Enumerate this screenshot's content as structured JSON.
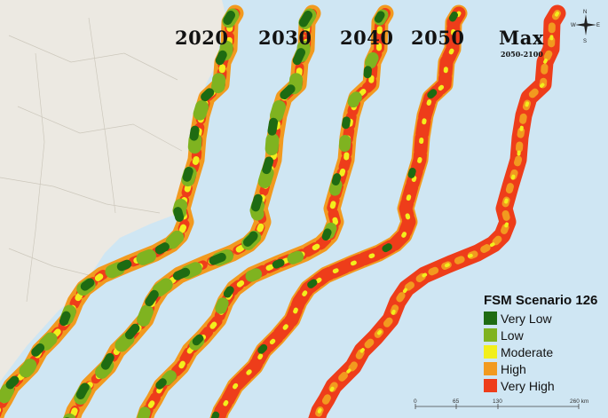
{
  "panels": [
    {
      "year": "2020",
      "sub": ""
    },
    {
      "year": "2030",
      "sub": ""
    },
    {
      "year": "2040",
      "sub": ""
    },
    {
      "year": "2050",
      "sub": ""
    },
    {
      "year": "Max",
      "sub": "2050-2100"
    }
  ],
  "legend": {
    "title": "FSM Scenario 126",
    "items": [
      {
        "label": "Very Low",
        "color": "#1e6b12"
      },
      {
        "label": "Low",
        "color": "#7fb320"
      },
      {
        "label": "Moderate",
        "color": "#f2ef1c"
      },
      {
        "label": "High",
        "color": "#f29a1f"
      },
      {
        "label": "Very High",
        "color": "#ee3d1a"
      }
    ]
  },
  "compass": {
    "n": "N",
    "s": "S",
    "e": "E",
    "w": "W"
  },
  "scale_bar": {
    "labels": [
      "0",
      "65",
      "130",
      "260 km"
    ]
  },
  "colors": {
    "ocean": "#cfe6f3",
    "land": "#ece9e2"
  }
}
